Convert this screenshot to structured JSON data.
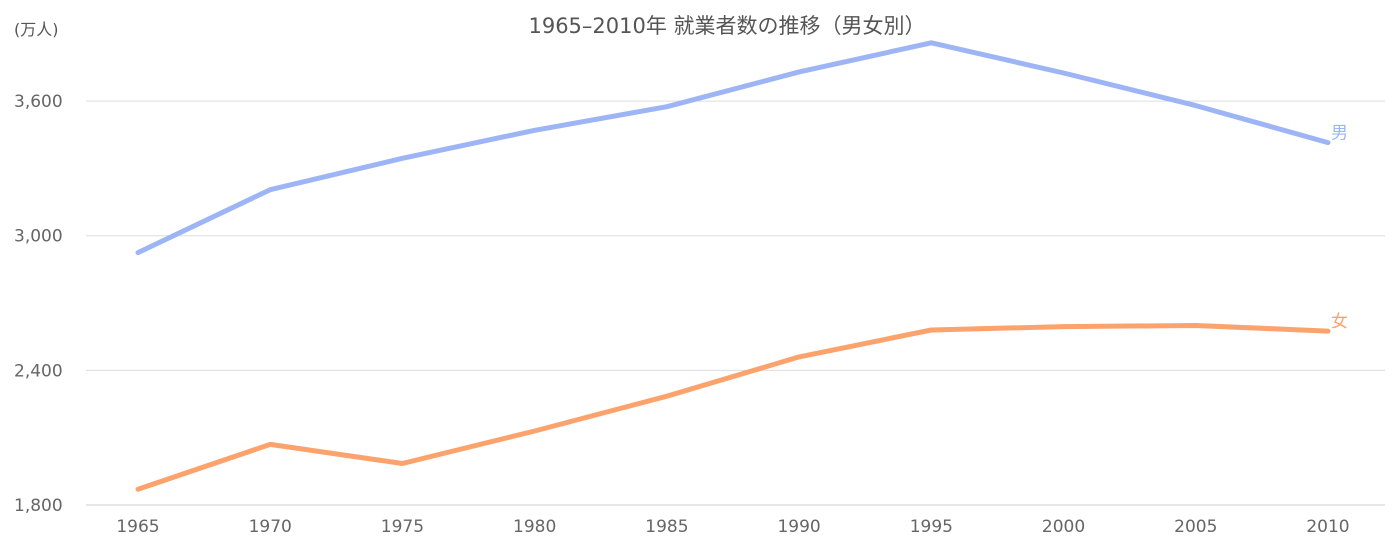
{
  "chart_data": {
    "type": "line",
    "title": "1965–2010年 就業者数の推移（男女別）",
    "ylabel": "(万人)",
    "xlabel": "",
    "x": [
      1965,
      1970,
      1975,
      1980,
      1985,
      1990,
      1995,
      2000,
      2005,
      2010
    ],
    "x_tick_labels": [
      "1965",
      "1970",
      "1975",
      "1980",
      "1985",
      "1990",
      "1995",
      "2000",
      "2005",
      "2010"
    ],
    "ylim": [
      1800,
      3850
    ],
    "yticks": [
      1800,
      2400,
      3000,
      3600
    ],
    "ytick_labels": [
      "1,800",
      "2,400",
      "3,000",
      "3,600"
    ],
    "grid": true,
    "legend": "inline-end",
    "series": [
      {
        "name": "男",
        "color": "#9db5f5",
        "values": [
          2925,
          3205,
          3345,
          3470,
          3575,
          3730,
          3860,
          3725,
          3580,
          3415
        ]
      },
      {
        "name": "女",
        "color": "#fca36d",
        "values": [
          1870,
          2070,
          1985,
          2130,
          2285,
          2460,
          2580,
          2595,
          2600,
          2575
        ]
      }
    ]
  }
}
